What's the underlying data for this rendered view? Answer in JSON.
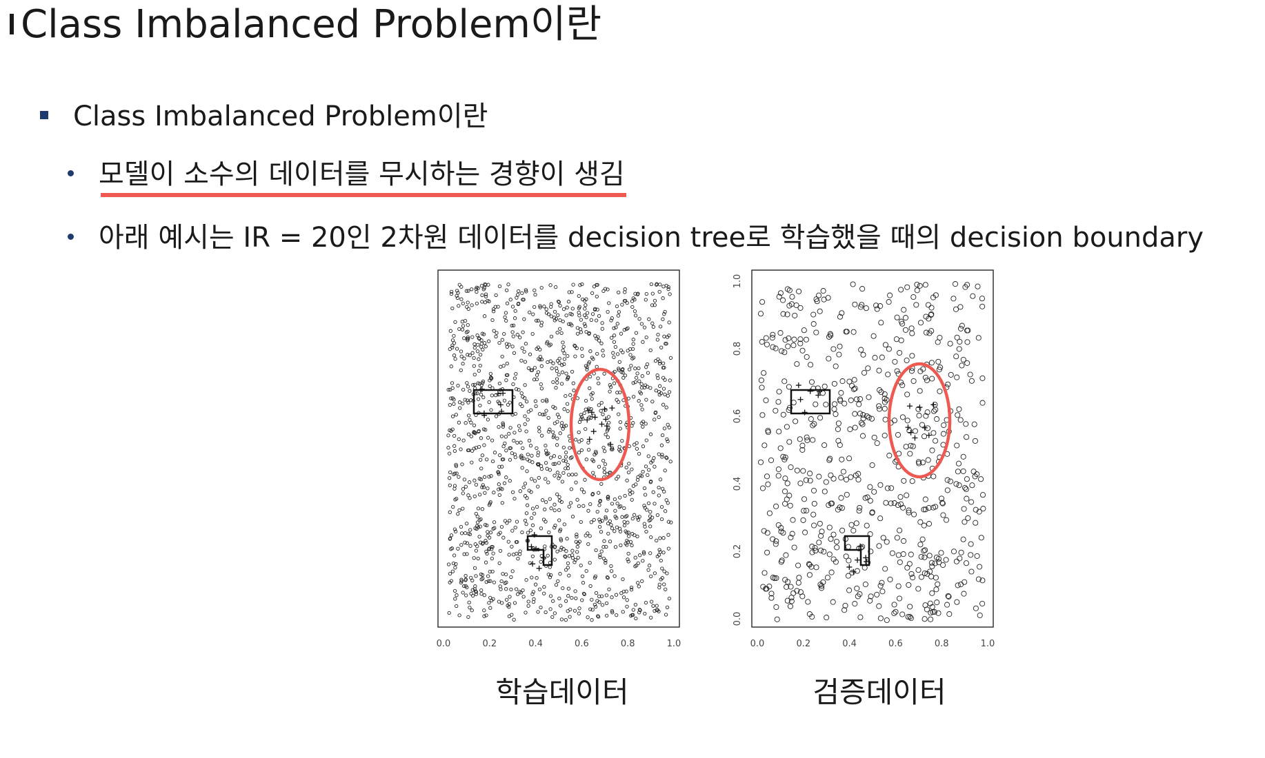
{
  "title": "Class Imbalanced Problem이란",
  "bullets": {
    "level1": "Class Imbalanced Problem이란",
    "item1": "모델이 소수의 데이터를 무시하는 경향이 생김",
    "item2": "아래 예시는 IR = 20인 2차원 데이터를 decision tree로 학습했을 때의 decision boundary"
  },
  "figures": {
    "left_caption": "학습데이터",
    "right_caption": "검증데이터",
    "x_ticks": [
      "0.0",
      "0.2",
      "0.4",
      "0.6",
      "0.8",
      "1.0"
    ],
    "y_ticks": [
      "0.0",
      "0.2",
      "0.4",
      "0.6",
      "0.8",
      "1.0"
    ],
    "highlight_color": "#ee5a52",
    "accent_color": "#1f3a6e"
  }
}
